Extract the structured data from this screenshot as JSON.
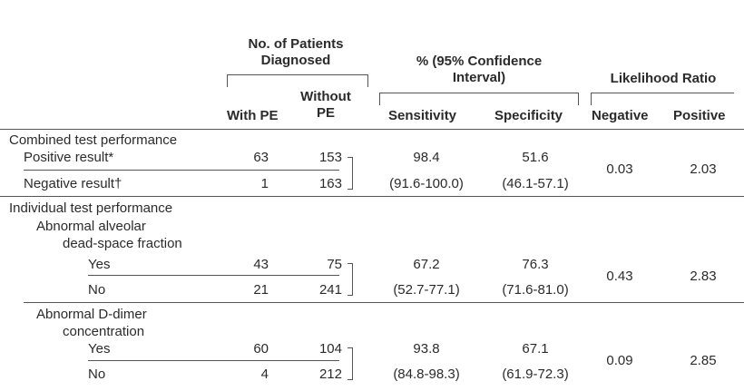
{
  "header": {
    "patients_group": "No. of Patients\nDiagnosed",
    "ci_group": "% (95% Confidence\nInterval)",
    "lr_group": "Likelihood Ratio",
    "col_with_pe": "With PE",
    "col_without_pe": "Without\nPE",
    "col_sensitivity": "Sensitivity",
    "col_specificity": "Specificity",
    "col_negative": "Negative",
    "col_positive": "Positive"
  },
  "combined": {
    "section_label": "Combined test performance",
    "positive_label": "Positive result*",
    "positive_with": "63",
    "positive_without": "153",
    "negative_label": "Negative result†",
    "negative_with": "1",
    "negative_without": "163",
    "sensitivity": "98.4",
    "sensitivity_ci": "(91.6-100.0)",
    "specificity": "51.6",
    "specificity_ci": "(46.1-57.1)",
    "lr_negative": "0.03",
    "lr_positive": "2.03"
  },
  "individual": {
    "section_label": "Individual test performance",
    "alveolar": {
      "label": "Abnormal alveolar\ndead-space fraction",
      "yes_label": "Yes",
      "yes_with": "43",
      "yes_without": "75",
      "no_label": "No",
      "no_with": "21",
      "no_without": "241",
      "sensitivity": "67.2",
      "sensitivity_ci": "(52.7-77.1)",
      "specificity": "76.3",
      "specificity_ci": "(71.6-81.0)",
      "lr_negative": "0.43",
      "lr_positive": "2.83"
    },
    "ddimer": {
      "label": "Abnormal D-dimer\nconcentration",
      "yes_label": "Yes",
      "yes_with": "60",
      "yes_without": "104",
      "no_label": "No",
      "no_with": "4",
      "no_without": "212",
      "sensitivity": "93.8",
      "sensitivity_ci": "(84.8-98.3)",
      "specificity": "67.1",
      "specificity_ci": "(61.9-72.3)",
      "lr_negative": "0.09",
      "lr_positive": "2.85"
    }
  }
}
